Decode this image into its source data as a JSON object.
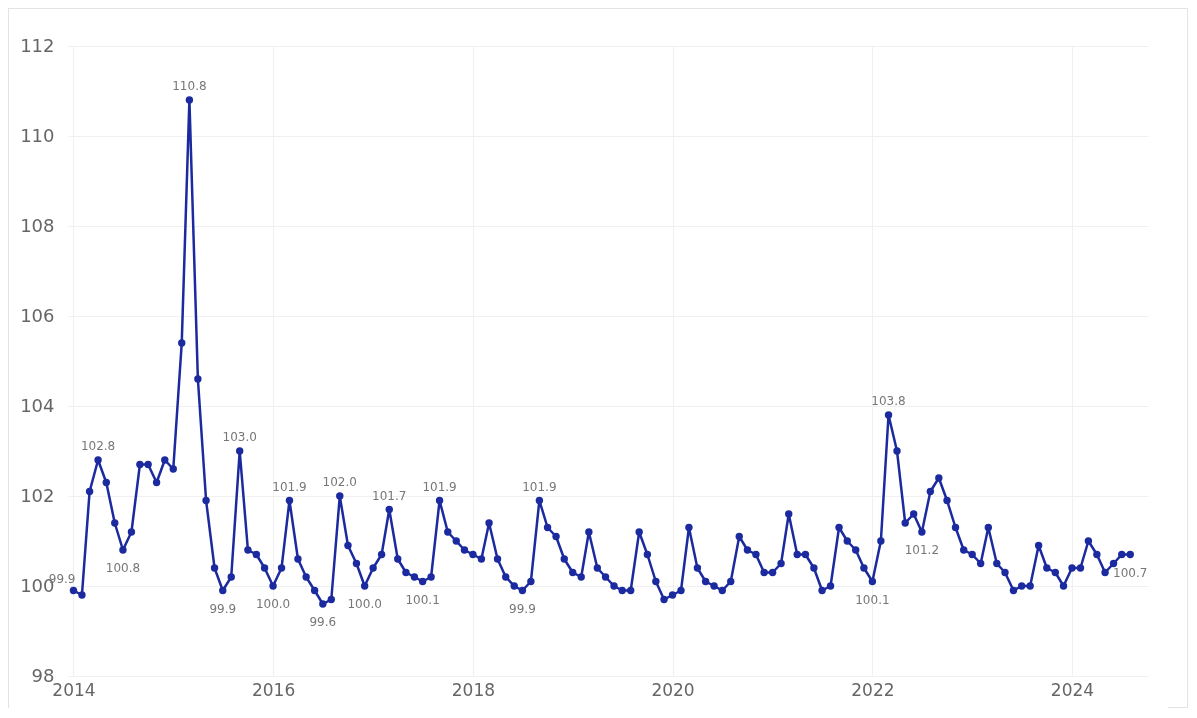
{
  "chart_data": {
    "type": "line",
    "x": [
      "2014-01",
      "2014-02",
      "2014-03",
      "2014-04",
      "2014-05",
      "2014-06",
      "2014-07",
      "2014-08",
      "2014-09",
      "2014-10",
      "2014-11",
      "2014-12",
      "2015-01",
      "2015-02",
      "2015-03",
      "2015-04",
      "2015-05",
      "2015-06",
      "2015-07",
      "2015-08",
      "2015-09",
      "2015-10",
      "2015-11",
      "2015-12",
      "2016-01",
      "2016-02",
      "2016-03",
      "2016-04",
      "2016-05",
      "2016-06",
      "2016-07",
      "2016-08",
      "2016-09",
      "2016-10",
      "2016-11",
      "2016-12",
      "2017-01",
      "2017-02",
      "2017-03",
      "2017-04",
      "2017-05",
      "2017-06",
      "2017-07",
      "2017-08",
      "2017-09",
      "2017-10",
      "2017-11",
      "2017-12",
      "2018-01",
      "2018-02",
      "2018-03",
      "2018-04",
      "2018-05",
      "2018-06",
      "2018-07",
      "2018-08",
      "2018-09",
      "2018-10",
      "2018-11",
      "2018-12",
      "2019-01",
      "2019-02",
      "2019-03",
      "2019-04",
      "2019-05",
      "2019-06",
      "2019-07",
      "2019-08",
      "2019-09",
      "2019-10",
      "2019-11",
      "2019-12",
      "2020-01",
      "2020-02",
      "2020-03",
      "2020-04",
      "2020-05",
      "2020-06",
      "2020-07",
      "2020-08",
      "2020-09",
      "2020-10",
      "2020-11",
      "2020-12",
      "2021-01",
      "2021-02",
      "2021-03",
      "2021-04",
      "2021-05",
      "2021-06",
      "2021-07",
      "2021-08",
      "2021-09",
      "2021-10",
      "2021-11",
      "2021-12",
      "2022-01",
      "2022-02",
      "2022-03",
      "2022-04",
      "2022-05",
      "2022-06",
      "2022-07",
      "2022-08",
      "2022-09",
      "2022-10",
      "2022-11",
      "2022-12",
      "2023-01",
      "2023-02",
      "2023-03",
      "2023-04",
      "2023-05",
      "2023-06",
      "2023-07",
      "2023-08",
      "2023-09",
      "2023-10",
      "2023-11",
      "2023-12",
      "2024-01",
      "2024-02",
      "2024-03",
      "2024-04",
      "2024-05",
      "2024-06",
      "2024-07",
      "2024-08"
    ],
    "series": [
      {
        "color": "#1b2a9e",
        "values": [
          99.9,
          99.8,
          102.1,
          102.8,
          102.3,
          101.4,
          100.8,
          101.2,
          102.7,
          102.7,
          102.3,
          102.8,
          102.6,
          105.4,
          110.8,
          104.6,
          101.9,
          100.4,
          99.9,
          100.2,
          103.0,
          100.8,
          100.7,
          100.4,
          100.0,
          100.4,
          101.9,
          100.6,
          100.2,
          99.9,
          99.6,
          99.7,
          102.0,
          100.9,
          100.5,
          100.0,
          100.4,
          100.7,
          101.7,
          100.6,
          100.3,
          100.2,
          100.1,
          100.2,
          101.9,
          101.2,
          101.0,
          100.8,
          100.7,
          100.6,
          101.4,
          100.6,
          100.2,
          100.0,
          99.9,
          100.1,
          101.9,
          101.3,
          101.1,
          100.6,
          100.3,
          100.2,
          101.2,
          100.4,
          100.2,
          100.0,
          99.9,
          99.9,
          101.2,
          100.7,
          100.1,
          99.7,
          99.8,
          99.9,
          101.3,
          100.4,
          100.1,
          100.0,
          99.9,
          100.1,
          101.1,
          100.8,
          100.7,
          100.3,
          100.3,
          100.5,
          101.6,
          100.7,
          100.7,
          100.4,
          99.9,
          100.0,
          101.3,
          101.0,
          100.8,
          100.4,
          100.1,
          101.0,
          103.8,
          103.0,
          101.4,
          101.6,
          101.2,
          102.1,
          102.4,
          101.9,
          101.3,
          100.8,
          100.7,
          100.5,
          101.3,
          100.5,
          100.3,
          99.9,
          100.0,
          100.0,
          100.9,
          100.4,
          100.3,
          100.0,
          100.4,
          100.4,
          101.0,
          100.7,
          100.3,
          100.5,
          100.7,
          100.7
        ],
        "value_labels": [
          "99.9",
          null,
          null,
          "102.8",
          null,
          null,
          "100.8",
          null,
          null,
          null,
          null,
          null,
          null,
          null,
          "110.8",
          null,
          null,
          null,
          "99.9",
          null,
          "103.0",
          null,
          null,
          null,
          "100.0",
          null,
          "101.9",
          null,
          null,
          null,
          "99.6",
          null,
          "102.0",
          null,
          null,
          "100.0",
          null,
          null,
          "101.7",
          null,
          null,
          null,
          "100.1",
          null,
          "101.9",
          null,
          null,
          null,
          null,
          null,
          null,
          null,
          null,
          null,
          "99.9",
          null,
          "101.9",
          null,
          null,
          null,
          null,
          null,
          null,
          null,
          null,
          null,
          null,
          null,
          null,
          null,
          null,
          null,
          null,
          null,
          null,
          null,
          null,
          null,
          null,
          null,
          null,
          null,
          null,
          null,
          null,
          null,
          null,
          null,
          null,
          null,
          null,
          null,
          null,
          null,
          null,
          null,
          "100.1",
          null,
          "103.8",
          null,
          null,
          null,
          "101.2",
          null,
          null,
          null,
          null,
          null,
          null,
          null,
          null,
          null,
          null,
          null,
          null,
          null,
          null,
          null,
          null,
          null,
          null,
          null,
          null,
          null,
          null,
          null,
          null,
          "100.7"
        ]
      }
    ],
    "xlim": [
      "2013-12-12",
      "2024-10-05"
    ],
    "xticks": [
      "2014",
      "2016",
      "2018",
      "2020",
      "2022",
      "2024"
    ],
    "ylim": [
      98,
      112
    ],
    "yticks": [
      98,
      100,
      102,
      104,
      106,
      108,
      110,
      112
    ],
    "grid": true,
    "marker": "circle",
    "line_style": "solid"
  }
}
